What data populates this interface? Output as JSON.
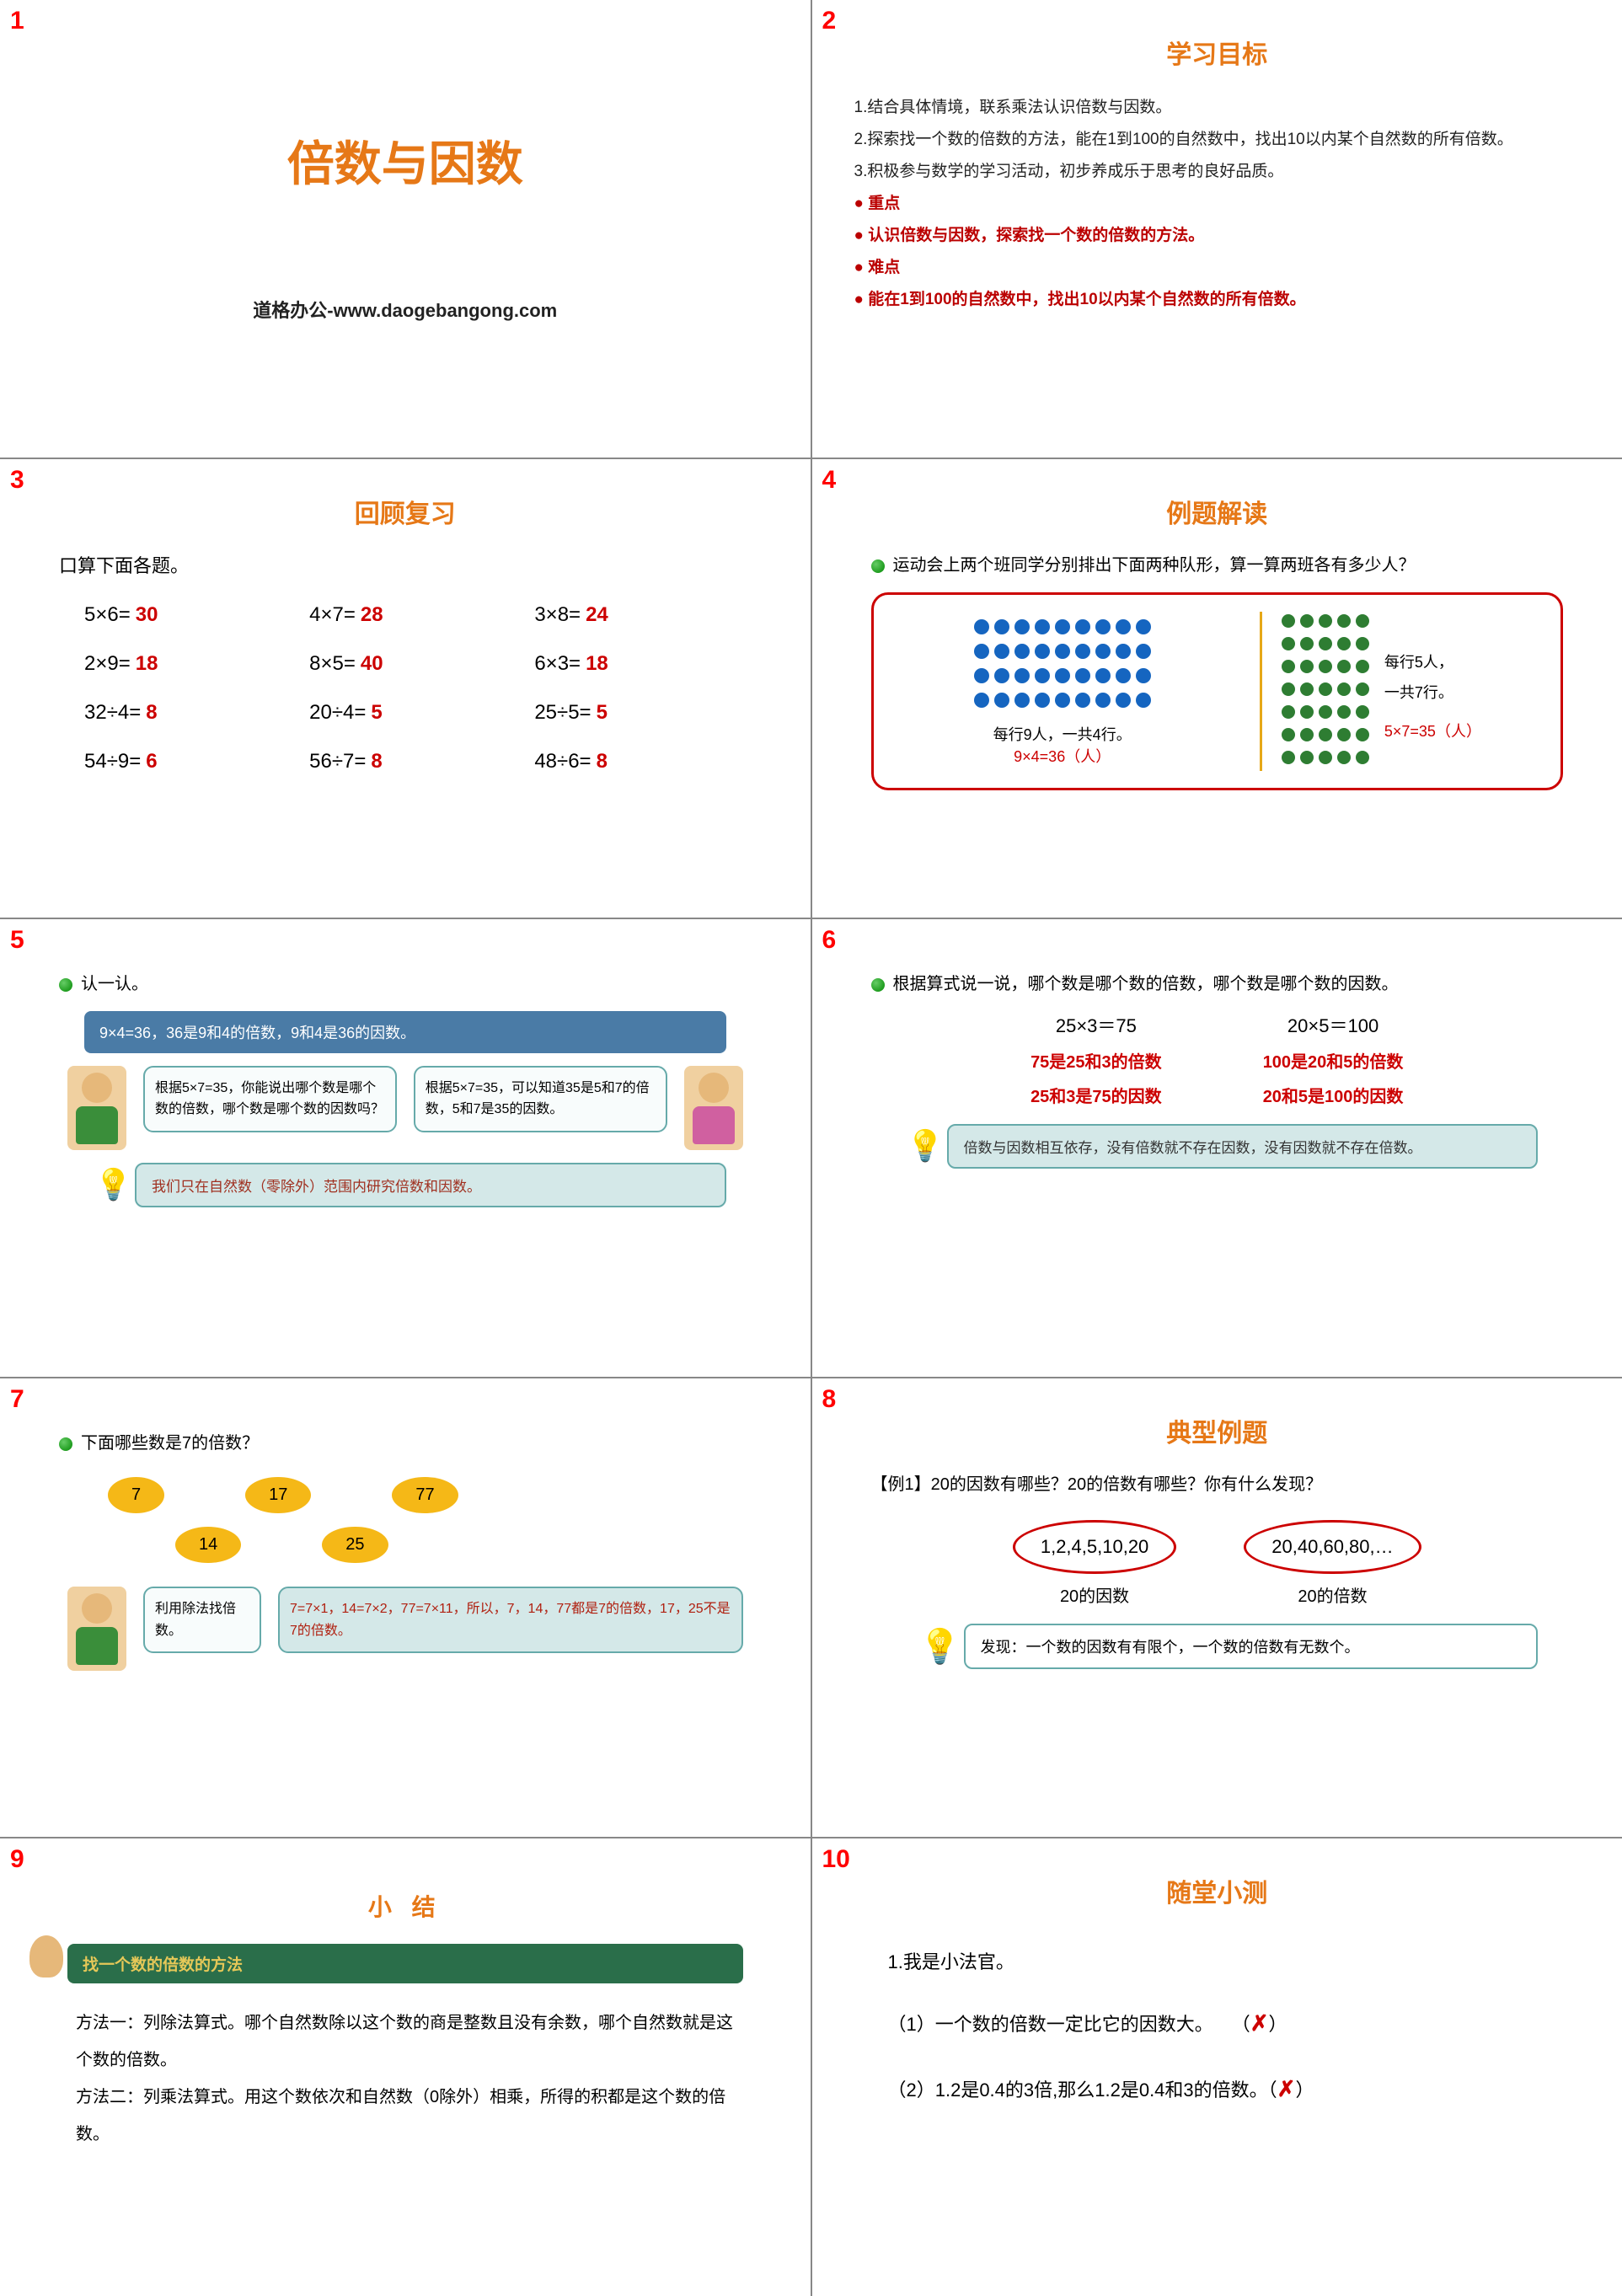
{
  "slides": {
    "s1": {
      "num": "1",
      "title": "倍数与因数",
      "subtitle": "道格办公-www.daogebangong.com"
    },
    "s2": {
      "num": "2",
      "title": "学习目标",
      "g1": "1.结合具体情境，联系乘法认识倍数与因数。",
      "g2": "2.探索找一个数的倍数的方法，能在1到100的自然数中，找出10以内某个自然数的所有倍数。",
      "g3": "3.积极参与数学的学习活动，初步养成乐于思考的良好品质。",
      "zd_label": "● 重点",
      "zd": "● 认识倍数与因数，探索找一个数的倍数的方法。",
      "nd_label": "● 难点",
      "nd": "● 能在1到100的自然数中，找出10以内某个自然数的所有倍数。"
    },
    "s3": {
      "num": "3",
      "title": "回顾复习",
      "prompt": "口算下面各题。",
      "cells": [
        {
          "q": "5×6=",
          "a": "30"
        },
        {
          "q": "4×7=",
          "a": "28"
        },
        {
          "q": "3×8=",
          "a": "24"
        },
        {
          "q": "2×9=",
          "a": "18"
        },
        {
          "q": "8×5=",
          "a": "40"
        },
        {
          "q": "6×3=",
          "a": "18"
        },
        {
          "q": "32÷4=",
          "a": "8"
        },
        {
          "q": "20÷4=",
          "a": "5"
        },
        {
          "q": "25÷5=",
          "a": "5"
        },
        {
          "q": "54÷9=",
          "a": "6"
        },
        {
          "q": "56÷7=",
          "a": "8"
        },
        {
          "q": "48÷6=",
          "a": "8"
        }
      ]
    },
    "s4": {
      "num": "4",
      "title": "例题解读",
      "prompt": "运动会上两个班同学分别排出下面两种队形，算一算两班各有多少人？",
      "left_label": "每行9人，一共4行。",
      "left_calc": "9×4=36（人）",
      "right_label1": "每行5人，",
      "right_label2": "一共7行。",
      "right_calc": "5×7=35（人）",
      "blue_rows": 4,
      "blue_cols": 9,
      "green_rows": 7,
      "green_cols": 5
    },
    "s5": {
      "num": "5",
      "prompt": "认一认。",
      "bluebox": "9×4=36，36是9和4的倍数，9和4是36的因数。",
      "speech1": "根据5×7=35，你能说出哪个数是哪个数的倍数，哪个数是哪个数的因数吗？",
      "speech2": "根据5×7=35，可以知道35是5和7的倍数，5和7是35的因数。",
      "note": "我们只在自然数（零除外）范围内研究倍数和因数。"
    },
    "s6": {
      "num": "6",
      "prompt": "根据算式说一说，哪个数是哪个数的倍数，哪个数是哪个数的因数。",
      "eq1": "25×3＝75",
      "eq2": "20×5＝100",
      "r1a": "75是25和3的倍数",
      "r1b": "25和3是75的因数",
      "r2a": "100是20和5的倍数",
      "r2b": "20和5是100的因数",
      "note": "倍数与因数相互依存，没有倍数就不存在因数，没有因数就不存在倍数。"
    },
    "s7": {
      "num": "7",
      "prompt": "下面哪些数是7的倍数？",
      "ovals": [
        "7",
        "17",
        "77",
        "14",
        "25"
      ],
      "speech_label": "利用除法找倍数。",
      "speech_ans": "7=7×1，14=7×2，77=7×11，所以，7，14，77都是7的倍数，17，25不是7的倍数。"
    },
    "s8": {
      "num": "8",
      "title": "典型例题",
      "q": "【例1】20的因数有哪些？20的倍数有哪些？你有什么发现？",
      "factors": "1,2,4,5,10,20",
      "multiples": "20,40,60,80,…",
      "label1": "20的因数",
      "label2": "20的倍数",
      "finding": "发现：一个数的因数有有限个，一个数的倍数有无数个。"
    },
    "s9": {
      "num": "9",
      "title": "小  结",
      "bar": "找一个数的倍数的方法",
      "m1": "方法一：列除法算式。哪个自然数除以这个数的商是整数且没有余数，哪个自然数就是这个数的倍数。",
      "m2": "方法二：列乘法算式。用这个数依次和自然数（0除外）相乘，所得的积都是这个数的倍数。"
    },
    "s10": {
      "num": "10",
      "title": "随堂小测",
      "q0": "1.我是小法官。",
      "q1": "（1）一个数的倍数一定比它的因数大。　　（",
      "a1": "✗",
      "q1b": "）",
      "q2": "（2）1.2是0.4的3倍,那么1.2是0.4和3的倍数。（",
      "a2": "✗",
      "q2b": "）"
    }
  }
}
